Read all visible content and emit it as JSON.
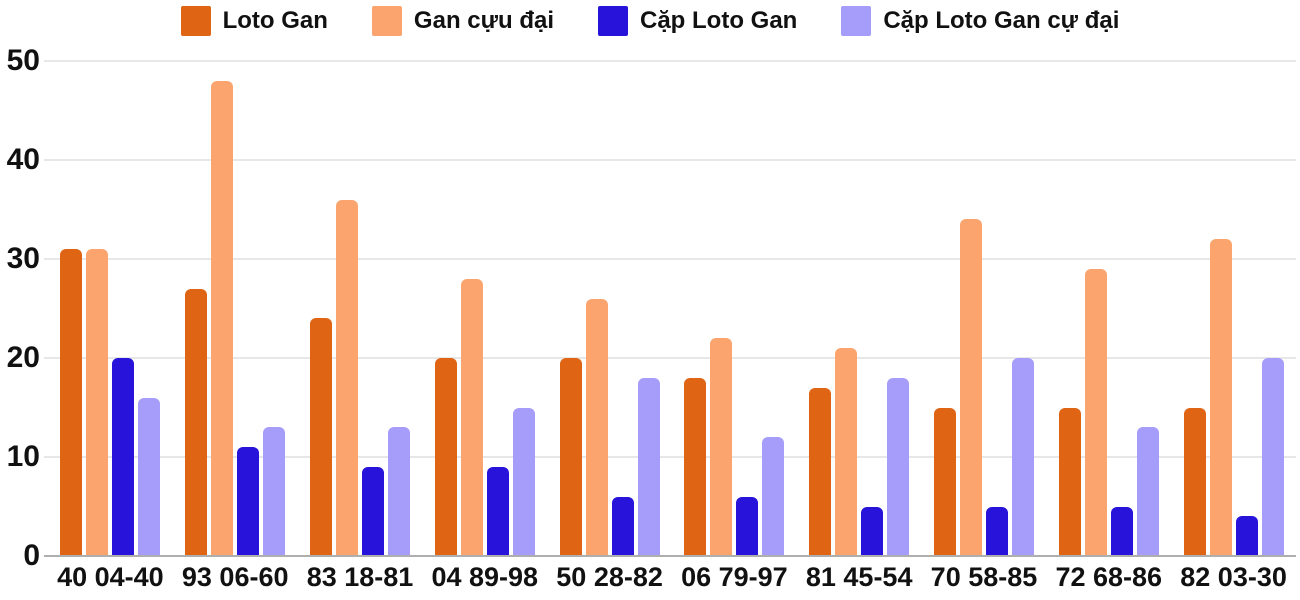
{
  "chart_data": {
    "type": "bar",
    "title": "",
    "xlabel": "",
    "ylabel": "",
    "categories": [
      "40 04-40",
      "93 06-60",
      "83 18-81",
      "04 89-98",
      "50 28-82",
      "06 79-97",
      "81 45-54",
      "70 58-85",
      "72 68-86",
      "82 03-30"
    ],
    "series": [
      {
        "name": "Loto Gan",
        "color": "#df6414",
        "values": [
          31,
          27,
          24,
          20,
          20,
          18,
          17,
          15,
          15,
          15
        ]
      },
      {
        "name": "Gan cựu đại",
        "color": "#fca46d",
        "values": [
          31,
          48,
          36,
          28,
          26,
          22,
          21,
          34,
          29,
          32
        ]
      },
      {
        "name": "Cặp Loto Gan",
        "color": "#2713d9",
        "values": [
          20,
          11,
          9,
          9,
          6,
          6,
          5,
          5,
          5,
          4
        ]
      },
      {
        "name": "Cặp Loto Gan cự đại",
        "color": "#a69dfa",
        "values": [
          16,
          13,
          13,
          15,
          18,
          12,
          18,
          20,
          13,
          20
        ]
      }
    ],
    "ylim": [
      0,
      50
    ],
    "yticks": [
      0,
      10,
      20,
      30,
      40,
      50
    ],
    "grid": true,
    "legend_position": "top",
    "colors": {
      "text": "#111111",
      "gridline": "#e7e7e7",
      "axis_line": "#aeaeae",
      "background": "#ffffff"
    }
  }
}
